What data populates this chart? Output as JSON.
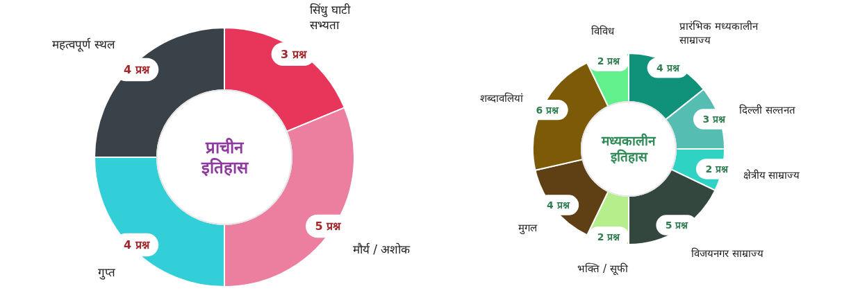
{
  "chart_data": [
    {
      "type": "donut",
      "title": "प्राचीन इतिहास",
      "categories": [
        "सिंधु घाटी सभ्यता",
        "मौर्य / अशोक",
        "गुप्त",
        "महत्वपूर्ण स्थल"
      ],
      "values": [
        3,
        5,
        4,
        4
      ],
      "colors": [
        "#e8365a",
        "#ec7fa0",
        "#33cfd8",
        "#3a4249"
      ],
      "value_labels": [
        "3 प्रश्न",
        "5 प्रश्न",
        "4 प्रश्न",
        "4 प्रश्न"
      ]
    },
    {
      "type": "donut",
      "title": "मध्यकालीन इतिहास",
      "categories": [
        "प्रारंभिक मध्यकालीन साम्राज्य",
        "दिल्ली सल्तनत",
        "क्षेत्रीय साम्राज्य",
        "विजयनगर साम्राज्य",
        "भक्ति / सूफी",
        "मुगल",
        "शब्दावलियां",
        "विविध"
      ],
      "values": [
        4,
        3,
        2,
        5,
        2,
        4,
        6,
        2
      ],
      "colors": [
        "#0f917a",
        "#55bdb2",
        "#2fd3c4",
        "#34473f",
        "#b6ee8c",
        "#5e4014",
        "#7d5a08",
        "#62f08c"
      ],
      "value_labels": [
        "4 प्रश्न",
        "3 प्रश्न",
        "2 प्रश्न",
        "5 प्रश्न",
        "2 प्रश्न",
        "4 प्रश्न",
        "6 प्रश्न",
        "2 प्रश्न"
      ]
    }
  ]
}
